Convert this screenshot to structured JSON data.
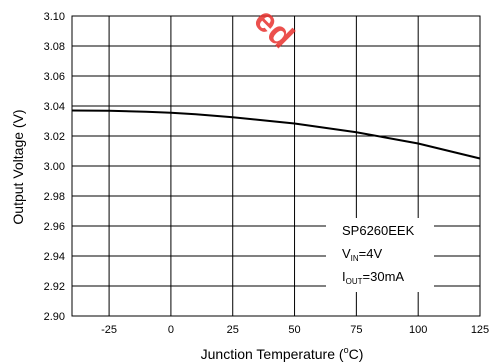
{
  "chart_data": {
    "type": "line",
    "title": "",
    "xlabel": "Junction Temperature (",
    "xlabel_sup": "o",
    "xlabel_tail": "C)",
    "ylabel": "Output Voltage (V)",
    "xlim": [
      -40,
      125
    ],
    "ylim": [
      2.9,
      3.1
    ],
    "x_ticks": [
      -25,
      0,
      25,
      50,
      75,
      100,
      125
    ],
    "x_tick_labels": [
      "-25",
      "0",
      "25",
      "50",
      "75",
      "100",
      "125"
    ],
    "y_ticks": [
      2.9,
      2.92,
      2.94,
      2.96,
      2.98,
      3.0,
      3.02,
      3.04,
      3.06,
      3.08,
      3.1
    ],
    "y_tick_labels": [
      "2.90",
      "2.92",
      "2.94",
      "2.96",
      "2.98",
      "3.00",
      "3.02",
      "3.04",
      "3.06",
      "3.08",
      "3.10"
    ],
    "grid": true,
    "series": [
      {
        "color": "#000000",
        "x": [
          -40,
          -25,
          -10,
          0,
          10,
          25,
          40,
          50,
          60,
          75,
          90,
          100,
          110,
          125
        ],
        "y": [
          3.037,
          3.0368,
          3.0362,
          3.0355,
          3.0345,
          3.0325,
          3.03,
          3.0283,
          3.026,
          3.0225,
          3.018,
          3.015,
          3.011,
          3.005
        ]
      }
    ],
    "legend": {
      "position": "bottom-right",
      "lines": [
        {
          "main": "SP6260EEK",
          "sub": "",
          "tail": ""
        },
        {
          "main": "V",
          "sub": "IN",
          "tail": "=4V"
        },
        {
          "main": "I",
          "sub": "OUT",
          "tail": "=30mA"
        }
      ]
    },
    "watermark": {
      "text": "ed",
      "color": "#e8322f"
    }
  }
}
